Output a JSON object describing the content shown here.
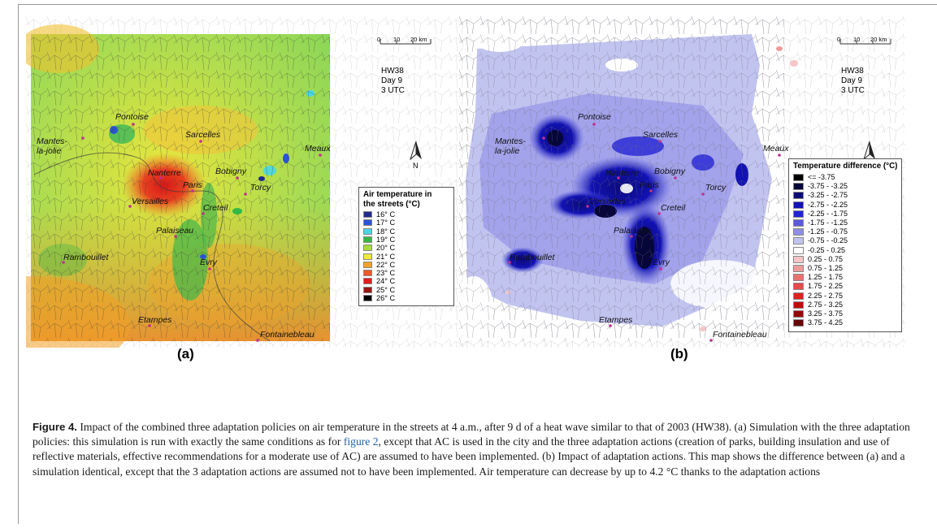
{
  "panels": [
    {
      "id": "a",
      "label": "(a)",
      "scale_ticks": [
        "0",
        "10",
        "20 km"
      ],
      "run_info": [
        "HW38",
        "Day 9",
        "3 UTC"
      ],
      "north": "N",
      "places": [
        "Pontoise",
        "Mantes-la-jolie",
        "Sarcelles",
        "Meaux",
        "Nanterre",
        "Bobigny",
        "Paris",
        "Torcy",
        "Versailles",
        "Creteil",
        "Palaiseau",
        "Rambouillet",
        "Evry",
        "Etampes",
        "Fontainebleau"
      ],
      "legend": {
        "title_lines": [
          "Air temperature in",
          "the streets (°C)"
        ],
        "entries": [
          {
            "label": "16° C",
            "color": "#1f2a8c"
          },
          {
            "label": "17° C",
            "color": "#2b53d6"
          },
          {
            "label": "18° C",
            "color": "#49d6e6"
          },
          {
            "label": "19° C",
            "color": "#35b845"
          },
          {
            "label": "20° C",
            "color": "#a6dc3a"
          },
          {
            "label": "21° C",
            "color": "#f1ea3a"
          },
          {
            "label": "22° C",
            "color": "#f3a127"
          },
          {
            "label": "23° C",
            "color": "#ec5a25"
          },
          {
            "label": "24° C",
            "color": "#e21b1b"
          },
          {
            "label": "25° C",
            "color": "#9c1414"
          },
          {
            "label": "26° C",
            "color": "#000000"
          }
        ]
      }
    },
    {
      "id": "b",
      "label": "(b)",
      "scale_ticks": [
        "0",
        "10",
        "20 km"
      ],
      "run_info": [
        "HW38",
        "Day 9",
        "3 UTC"
      ],
      "north": "N",
      "places": [
        "Pontoise",
        "Mantes-la-jolie",
        "Sarcelles",
        "Meaux",
        "Nanterre",
        "Bobigny",
        "Paris",
        "Torcy",
        "Versailles",
        "Creteil",
        "Palaiseau",
        "Rambouillet",
        "Evry",
        "Etampes",
        "Fontainebleau"
      ],
      "legend": {
        "title_lines": [
          "Temperature difference (°C)"
        ],
        "entries": [
          {
            "label": "<= -3.75",
            "color": "#000000"
          },
          {
            "label": "-3.75 - -3.25",
            "color": "#06063a"
          },
          {
            "label": "-3.25 - -2.75",
            "color": "#0b0b78"
          },
          {
            "label": "-2.75 - -2.25",
            "color": "#1212b4"
          },
          {
            "label": "-2.25 - -1.75",
            "color": "#2323d6"
          },
          {
            "label": "-1.75 - -1.25",
            "color": "#5a5ae0"
          },
          {
            "label": "-1.25 - -0.75",
            "color": "#8e8ee8"
          },
          {
            "label": "-0.75 - -0.25",
            "color": "#c2c4f0"
          },
          {
            "label": "-0.25 - 0.25",
            "color": "#ffffff"
          },
          {
            "label": "0.25 - 0.75",
            "color": "#f6c6c6"
          },
          {
            "label": "0.75 - 1.25",
            "color": "#f09a9a"
          },
          {
            "label": "1.25 - 1.75",
            "color": "#eb7070"
          },
          {
            "label": "1.75 - 2.25",
            "color": "#e64a4a"
          },
          {
            "label": "2.25 - 2.75",
            "color": "#dd2020"
          },
          {
            "label": "2.75 - 3.25",
            "color": "#bf0b0b"
          },
          {
            "label": "3.25 - 3.75",
            "color": "#970606"
          },
          {
            "label": "3.75 - 4.25",
            "color": "#680202"
          }
        ]
      }
    }
  ],
  "caption": {
    "figure_label": "Figure 4.",
    "text_part1": " Impact of the combined three adaptation policies on air temperature in the streets at 4 a.m., after 9 d of a heat wave similar to that of 2003 (HW38). (a) Simulation with the three adaptation policies: this simulation is run with exactly the same conditions as for ",
    "figure_ref": "figure 2",
    "text_part2": ", except that AC is used in the city and the three adaptation actions (creation of parks, building insulation and use of reflective materials, effective recommendations for a moderate use of AC) are assumed to have been implemented. (b) Impact of adaptation actions. This map shows the difference between (a) and a simulation identical, except that the 3 adaptation actions are assumed not to have been implemented. Air temperature can decrease by up to 4.2 °C thanks to the adaptation actions"
  },
  "colors": {
    "frame": "#9a9a9a",
    "figure_ref": "#1f5fa8",
    "place_dot": "#c03090"
  }
}
